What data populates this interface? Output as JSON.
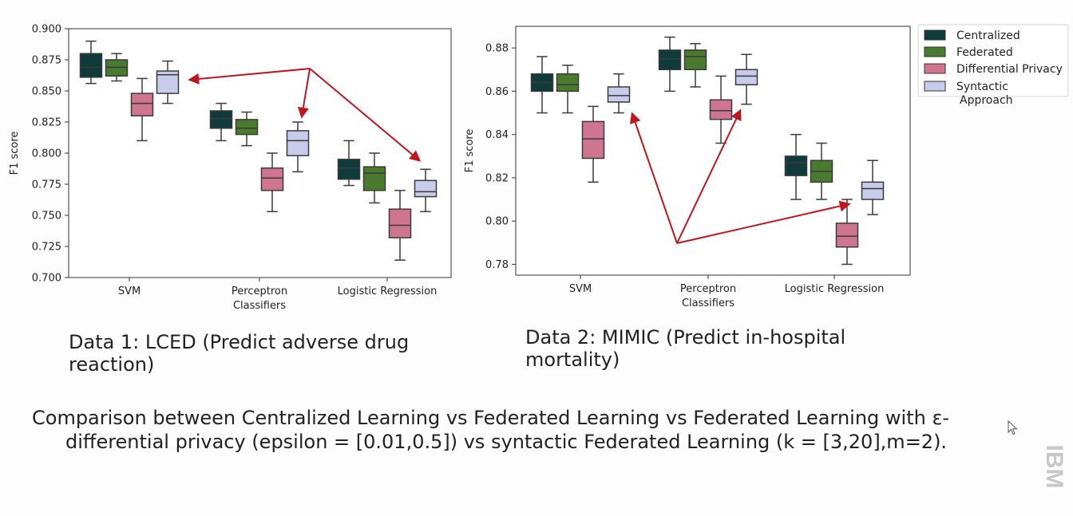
{
  "chart_data": [
    {
      "type": "box",
      "ylabel": "F1 score",
      "ylim": [
        0.7,
        0.9
      ],
      "yticks": [
        "0.700",
        "0.725",
        "0.750",
        "0.775",
        "0.800",
        "0.825",
        "0.850",
        "0.875",
        "0.900"
      ],
      "yticks_values": [
        0.7,
        0.725,
        0.75,
        0.775,
        0.8,
        0.825,
        0.85,
        0.875,
        0.9
      ],
      "categories": [
        [
          "SVM"
        ],
        [
          "Perceptron",
          "Classifiers"
        ],
        [
          "Logistic Regression"
        ]
      ],
      "series": [
        {
          "name": "Centralized",
          "boxes": [
            {
              "min": 0.856,
              "q1": 0.861,
              "median": 0.869,
              "q3": 0.88,
              "max": 0.89
            },
            {
              "min": 0.81,
              "q1": 0.82,
              "median": 0.828,
              "q3": 0.834,
              "max": 0.84
            },
            {
              "min": 0.774,
              "q1": 0.779,
              "median": 0.788,
              "q3": 0.795,
              "max": 0.81
            }
          ]
        },
        {
          "name": "Federated",
          "boxes": [
            {
              "min": 0.858,
              "q1": 0.862,
              "median": 0.869,
              "q3": 0.875,
              "max": 0.88
            },
            {
              "min": 0.806,
              "q1": 0.815,
              "median": 0.82,
              "q3": 0.827,
              "max": 0.833
            },
            {
              "min": 0.76,
              "q1": 0.77,
              "median": 0.784,
              "q3": 0.789,
              "max": 0.8
            }
          ]
        },
        {
          "name": "Differential Privacy",
          "boxes": [
            {
              "min": 0.81,
              "q1": 0.83,
              "median": 0.84,
              "q3": 0.848,
              "max": 0.86
            },
            {
              "min": 0.753,
              "q1": 0.77,
              "median": 0.78,
              "q3": 0.788,
              "max": 0.8
            },
            {
              "min": 0.714,
              "q1": 0.732,
              "median": 0.742,
              "q3": 0.755,
              "max": 0.77
            }
          ]
        },
        {
          "name": "Syntactic Approach",
          "boxes": [
            {
              "min": 0.84,
              "q1": 0.848,
              "median": 0.863,
              "q3": 0.866,
              "max": 0.874
            },
            {
              "min": 0.785,
              "q1": 0.798,
              "median": 0.81,
              "q3": 0.818,
              "max": 0.825
            },
            {
              "min": 0.753,
              "q1": 0.765,
              "median": 0.769,
              "q3": 0.778,
              "max": 0.787
            }
          ]
        }
      ]
    },
    {
      "type": "box",
      "ylabel": "F1 score",
      "ylim": [
        0.775,
        0.89
      ],
      "yticks": [
        "0.78",
        "0.80",
        "0.82",
        "0.84",
        "0.86",
        "0.88"
      ],
      "yticks_values": [
        0.78,
        0.8,
        0.82,
        0.84,
        0.86,
        0.88
      ],
      "categories": [
        [
          "SVM"
        ],
        [
          "Perceptron",
          "Classifiers"
        ],
        [
          "Logistic Regression"
        ]
      ],
      "series": [
        {
          "name": "Centralized",
          "boxes": [
            {
              "min": 0.85,
              "q1": 0.86,
              "median": 0.864,
              "q3": 0.868,
              "max": 0.876
            },
            {
              "min": 0.86,
              "q1": 0.87,
              "median": 0.875,
              "q3": 0.879,
              "max": 0.885
            },
            {
              "min": 0.81,
              "q1": 0.821,
              "median": 0.827,
              "q3": 0.83,
              "max": 0.84
            }
          ]
        },
        {
          "name": "Federated",
          "boxes": [
            {
              "min": 0.85,
              "q1": 0.86,
              "median": 0.863,
              "q3": 0.868,
              "max": 0.872
            },
            {
              "min": 0.862,
              "q1": 0.87,
              "median": 0.876,
              "q3": 0.879,
              "max": 0.882
            },
            {
              "min": 0.81,
              "q1": 0.818,
              "median": 0.823,
              "q3": 0.828,
              "max": 0.836
            }
          ]
        },
        {
          "name": "Differential Privacy",
          "boxes": [
            {
              "min": 0.818,
              "q1": 0.829,
              "median": 0.838,
              "q3": 0.846,
              "max": 0.853
            },
            {
              "min": 0.836,
              "q1": 0.847,
              "median": 0.851,
              "q3": 0.856,
              "max": 0.867
            },
            {
              "min": 0.78,
              "q1": 0.788,
              "median": 0.793,
              "q3": 0.799,
              "max": 0.81
            }
          ]
        },
        {
          "name": "Syntactic Approach",
          "boxes": [
            {
              "min": 0.85,
              "q1": 0.855,
              "median": 0.858,
              "q3": 0.862,
              "max": 0.868
            },
            {
              "min": 0.854,
              "q1": 0.863,
              "median": 0.867,
              "q3": 0.87,
              "max": 0.877
            },
            {
              "min": 0.803,
              "q1": 0.81,
              "median": 0.815,
              "q3": 0.818,
              "max": 0.828
            }
          ]
        }
      ]
    }
  ],
  "legend": {
    "placement": "top-right",
    "entries": [
      {
        "label": "Centralized",
        "color": "#0f3b3b"
      },
      {
        "label": "Federated",
        "color": "#4a7a2e"
      },
      {
        "label": "Differential Privacy",
        "color": "#cf7591"
      },
      {
        "label": "Syntactic",
        "label2": "Approach",
        "color": "#c8cbea"
      }
    ]
  },
  "captions": {
    "chart1": "Data 1: LCED (Predict adverse drug reaction)",
    "chart2": "Data 2: MIMIC (Predict in-hospital mortality)"
  },
  "footer": {
    "line1": "Comparison between Centralized Learning vs Federated Learning vs Federated Learning with ε-",
    "line2": "differential privacy (epsilon = [0.01,0.5]) vs syntactic Federated Learning (k = [3,20],m=2)."
  },
  "logo": {
    "text": "IBM"
  },
  "colors": {
    "arrow": "#c0141e"
  }
}
